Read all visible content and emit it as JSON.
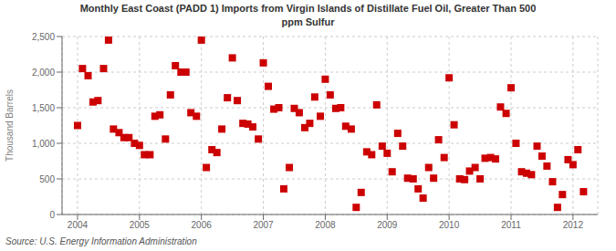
{
  "chart_data": {
    "type": "scatter",
    "title": "Monthly East Coast (PADD 1) Imports from Virgin Islands of Distillate Fuel Oil, Greater Than 500\nppm Sulfur",
    "ylabel": "Thousand Barrels",
    "annotations": [
      "Source: U.S. Energy Information Administration"
    ],
    "color": "#cc0000",
    "marker": "square",
    "grid": true,
    "xlim": [
      2003.75,
      2012.4
    ],
    "xticks": [
      2004,
      2005,
      2006,
      2007,
      2008,
      2009,
      2010,
      2011,
      2012
    ],
    "ylim": [
      0,
      2500
    ],
    "yticks": [
      0,
      500,
      {
        "value": 1000,
        "label": "1,000"
      },
      {
        "value": 1500,
        "label": "1,500"
      },
      {
        "value": 2000,
        "label": "2,000"
      },
      {
        "value": 2500,
        "label": "2,500"
      }
    ],
    "x": [
      2004.0,
      2004.08,
      2004.17,
      2004.25,
      2004.33,
      2004.42,
      2004.5,
      2004.58,
      2004.67,
      2004.75,
      2004.83,
      2004.92,
      2005.0,
      2005.08,
      2005.17,
      2005.25,
      2005.33,
      2005.42,
      2005.5,
      2005.58,
      2005.67,
      2005.75,
      2005.83,
      2005.92,
      2006.0,
      2006.08,
      2006.17,
      2006.25,
      2006.33,
      2006.42,
      2006.5,
      2006.58,
      2006.67,
      2006.75,
      2006.83,
      2006.92,
      2007.0,
      2007.08,
      2007.17,
      2007.25,
      2007.33,
      2007.42,
      2007.5,
      2007.58,
      2007.67,
      2007.75,
      2007.83,
      2007.92,
      2008.0,
      2008.08,
      2008.17,
      2008.25,
      2008.33,
      2008.42,
      2008.5,
      2008.58,
      2008.67,
      2008.75,
      2008.83,
      2008.92,
      2009.0,
      2009.08,
      2009.17,
      2009.25,
      2009.33,
      2009.42,
      2009.5,
      2009.58,
      2009.67,
      2009.75,
      2009.83,
      2009.92,
      2010.0,
      2010.08,
      2010.17,
      2010.25,
      2010.33,
      2010.42,
      2010.5,
      2010.58,
      2010.67,
      2010.75,
      2010.83,
      2010.92,
      2011.0,
      2011.08,
      2011.17,
      2011.25,
      2011.33,
      2011.42,
      2011.5,
      2011.58,
      2011.67,
      2011.75,
      2011.83,
      2011.92,
      2012.0,
      2012.08,
      2012.17
    ],
    "values": [
      1250,
      2050,
      1950,
      1580,
      1600,
      2050,
      2450,
      1200,
      1150,
      1080,
      1080,
      1000,
      970,
      840,
      840,
      1380,
      1400,
      1060,
      1680,
      2090,
      2000,
      2000,
      1430,
      1380,
      2450,
      660,
      910,
      870,
      1200,
      1640,
      2200,
      1600,
      1280,
      1270,
      1230,
      1060,
      2130,
      1800,
      1480,
      1500,
      360,
      660,
      1490,
      1430,
      1220,
      1280,
      1650,
      1380,
      1900,
      1680,
      1490,
      1500,
      1240,
      1200,
      100,
      310,
      880,
      840,
      1540,
      960,
      860,
      600,
      1140,
      960,
      510,
      500,
      360,
      230,
      660,
      510,
      1050,
      800,
      1920,
      1260,
      500,
      490,
      610,
      660,
      500,
      790,
      800,
      780,
      1510,
      1420,
      1780,
      1000,
      600,
      580,
      560,
      960,
      820,
      680,
      460,
      100,
      280,
      770,
      700,
      910,
      320
    ]
  }
}
